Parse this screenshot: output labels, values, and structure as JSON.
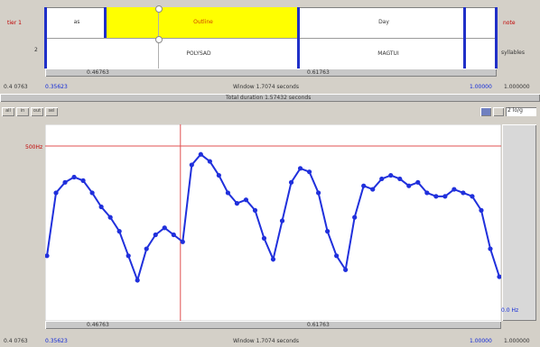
{
  "tiers": {
    "tier1_label": "tier 1",
    "tier2_label": "2",
    "right_tier1_label": "note",
    "right_tier2_label": "syllables",
    "segments_tier1": [
      "as",
      "Outline",
      "Day"
    ],
    "segments_tier2": [
      "POLYSAD",
      "MAGTUI"
    ],
    "left_marker": "as",
    "seg_duration_left": "0.46763",
    "seg_duration_right": "0.61763"
  },
  "status_top": {
    "left_time": "0.4 0763",
    "left_blue": "0.35623",
    "center": "Window 1.7074 seconds",
    "right_blue": "1.00000",
    "right_time": "1.000000"
  },
  "toolbar": {
    "title": "Total duration 1.57432 seconds",
    "buttons": [
      "all",
      "in",
      "out",
      "sel"
    ],
    "zoom_value": "2 lo/g"
  },
  "pitch": {
    "cursor_label": "500Hz",
    "bottom_right_label": "0.0 Hz",
    "seg_duration_left": "0.46763",
    "seg_duration_right": "0.61763",
    "color_line": "#2030dc",
    "color_cursor": "#e05050"
  },
  "status_bottom": {
    "left_time": "0.4 0763",
    "left_blue": "0.35623",
    "center": "Window 1.7074 seconds",
    "right_blue": "1.00000",
    "right_time": "1.000000"
  },
  "chart_data": {
    "type": "line",
    "x": [
      0,
      2,
      4,
      6,
      8,
      10,
      12,
      14,
      16,
      18,
      20,
      22,
      24,
      26,
      28,
      30,
      32,
      34,
      36,
      38,
      40,
      42,
      44,
      46,
      48,
      50,
      52,
      54,
      56,
      58,
      60,
      62,
      64,
      66,
      68,
      70,
      72,
      74,
      76,
      78,
      80,
      82,
      84,
      86,
      88,
      90,
      92,
      94,
      96,
      98,
      100
    ],
    "y": [
      30,
      66,
      72,
      75,
      73,
      66,
      58,
      52,
      44,
      30,
      16,
      34,
      42,
      46,
      42,
      38,
      82,
      88,
      84,
      76,
      66,
      60,
      62,
      56,
      40,
      28,
      50,
      72,
      80,
      78,
      66,
      44,
      30,
      22,
      52,
      70,
      68,
      74,
      76,
      74,
      70,
      72,
      66,
      64,
      64,
      68,
      66,
      64,
      56,
      34,
      18
    ],
    "cursor_x": 29.5
  }
}
